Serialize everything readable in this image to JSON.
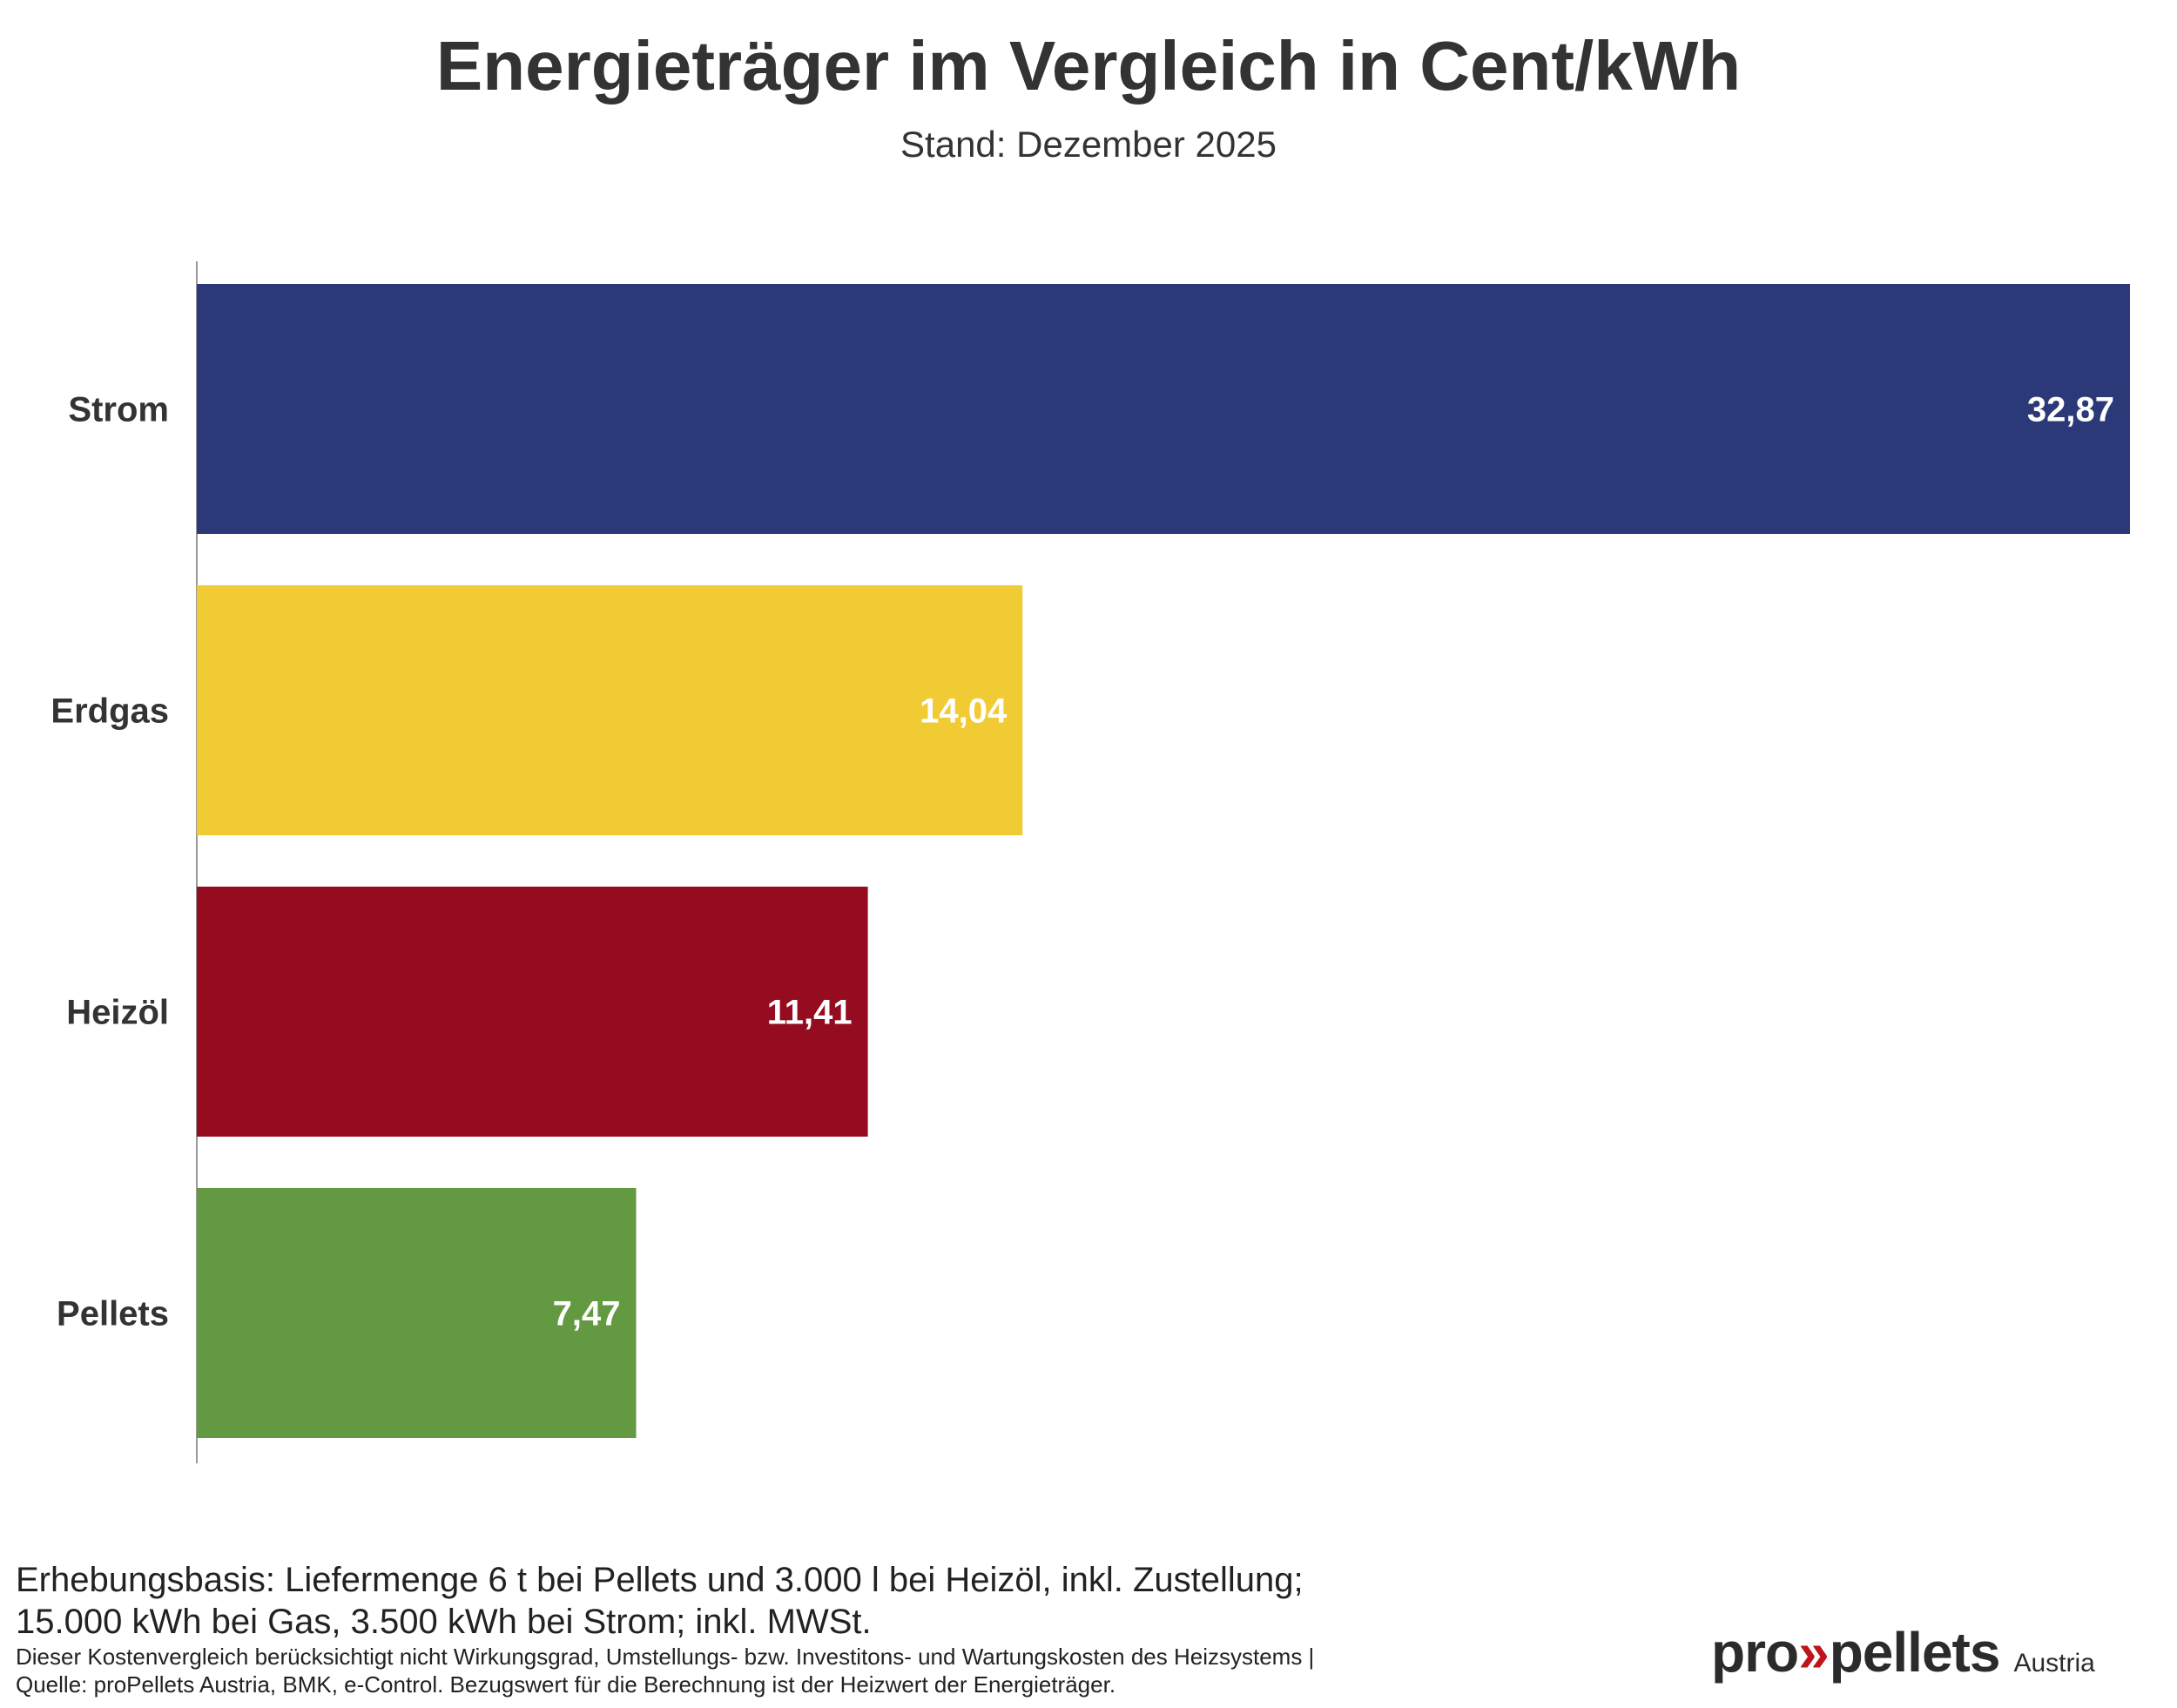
{
  "chart_data": {
    "type": "bar",
    "orientation": "horizontal",
    "title": "Energieträger im Vergleich in Cent/kWh",
    "subtitle": "Stand: Dezember 2025",
    "categories": [
      "Strom",
      "Erdgas",
      "Heizöl",
      "Pellets"
    ],
    "values": [
      32.87,
      14.04,
      11.41,
      7.47
    ],
    "value_labels": [
      "32,87",
      "14,04",
      "11,41",
      "7,47"
    ],
    "colors": [
      "#2b3978",
      "#f1cb33",
      "#950b1f",
      "#639a41"
    ],
    "xlim": [
      0,
      32.87
    ],
    "grid": false,
    "legend": "none"
  },
  "footnote": {
    "line1": "Erhebungsbasis: Liefermenge 6 t bei Pellets und 3.000 l bei Heizöl, inkl. Zustellung;",
    "line2": "15.000 kWh bei Gas, 3.500 kWh bei Strom; inkl. MWSt.",
    "line3": "Dieser Kostenvergleich berücksichtigt nicht Wirkungsgrad, Umstellungs- bzw. Investitons- und Wartungskosten des Heizsystems |",
    "line4": "Quelle: proPellets Austria, BMK, e-Control. Bezugswert für die Berechnung ist der Heizwert der Energieträger."
  },
  "logo": {
    "part1": "pro",
    "arrows": "»",
    "part2": "pellets",
    "suffix": "Austria"
  }
}
